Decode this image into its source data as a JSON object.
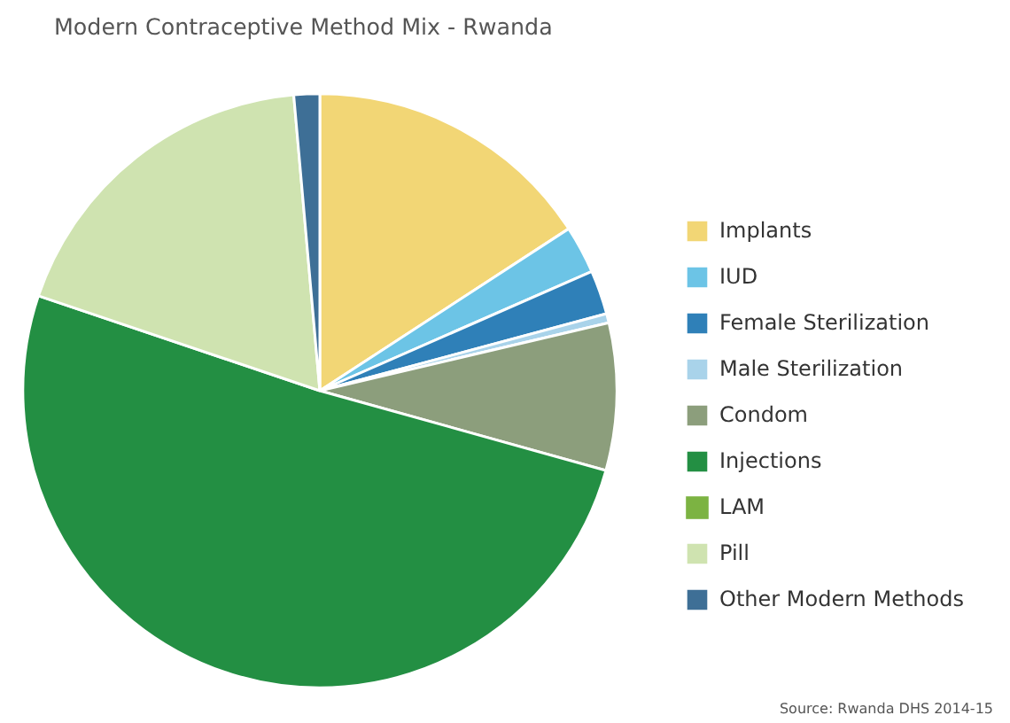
{
  "chart_data": {
    "type": "pie",
    "title": "Modern Contraceptive Method Mix - Rwanda",
    "categories": [
      "Implants",
      "IUD",
      "Female Sterilization",
      "Male Sterilization",
      "Condom",
      "Injections",
      "LAM",
      "Pill",
      "Other Modern Methods"
    ],
    "values": [
      15.8,
      2.6,
      2.4,
      0.5,
      8.0,
      50.8,
      null,
      18.4,
      1.4
    ],
    "colors": [
      "#f2d675",
      "#6cc4e6",
      "#2f80b8",
      "#a9d3ea",
      "#8c9e7c",
      "#238f43",
      "#7cb342",
      "#cfe3b0",
      "#3e6f96"
    ],
    "legend": "right",
    "annotations": [
      "Source: Rwanda DHS 2014-15"
    ]
  }
}
